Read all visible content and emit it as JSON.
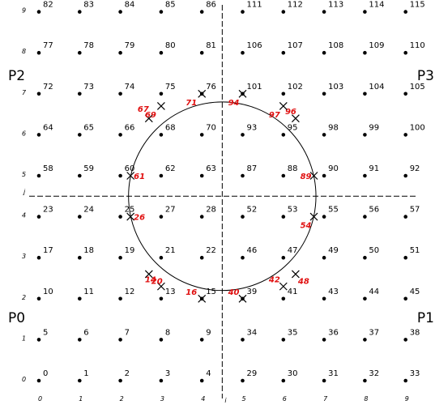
{
  "colors": {
    "dot": "#000000",
    "line": "#000000",
    "crossing": "#e01010"
  },
  "axes": {
    "x_name": "i",
    "y_name": "j",
    "x_ticks": [
      "0",
      "1",
      "2",
      "3",
      "4",
      "5",
      "6",
      "7",
      "8",
      "9"
    ],
    "y_ticks": [
      "0",
      "1",
      "2",
      "3",
      "4",
      "5",
      "6",
      "7",
      "8",
      "9"
    ]
  },
  "regions": [
    {
      "label": "P0",
      "place": "left-lower"
    },
    {
      "label": "P1",
      "place": "right-lower"
    },
    {
      "label": "P2",
      "place": "left-upper"
    },
    {
      "label": "P3",
      "place": "right-upper"
    }
  ],
  "circle": {
    "center": [
      4.5,
      4.5
    ],
    "radius": 2.3
  },
  "grid_labels": [
    [
      "0",
      "1",
      "2",
      "3",
      "4",
      "29",
      "30",
      "31",
      "32",
      "33"
    ],
    [
      "5",
      "6",
      "7",
      "8",
      "9",
      "34",
      "35",
      "36",
      "37",
      "38"
    ],
    [
      "10",
      "11",
      "12",
      "13",
      "15",
      "39",
      "41",
      "43",
      "44",
      "45"
    ],
    [
      "17",
      "18",
      "19",
      "21",
      "22",
      "46",
      "47",
      "49",
      "50",
      "51"
    ],
    [
      "23",
      "24",
      "25",
      "27",
      "28",
      "52",
      "53",
      "55",
      "56",
      "57"
    ],
    [
      "58",
      "59",
      "60",
      "62",
      "63",
      "87",
      "88",
      "90",
      "91",
      "92"
    ],
    [
      "64",
      "65",
      "66",
      "68",
      "70",
      "93",
      "95",
      "98",
      "99",
      "100"
    ],
    [
      "72",
      "73",
      "74",
      "75",
      "76",
      "101",
      "102",
      "103",
      "104",
      "105"
    ],
    [
      "77",
      "78",
      "79",
      "80",
      "81",
      "106",
      "107",
      "108",
      "109",
      "110"
    ],
    [
      "82",
      "83",
      "84",
      "85",
      "86",
      "111",
      "112",
      "113",
      "114",
      "115"
    ]
  ],
  "crossings": [
    {
      "label": "14",
      "x": 3.0,
      "y": 2.3
    },
    {
      "label": "16",
      "x": 4.0,
      "y": 2.0
    },
    {
      "label": "20",
      "x": 2.7,
      "y": 2.6
    },
    {
      "label": "26",
      "x": 2.25,
      "y": 4.0
    },
    {
      "label": "40",
      "x": 5.0,
      "y": 2.0
    },
    {
      "label": "42",
      "x": 6.0,
      "y": 2.3
    },
    {
      "label": "48",
      "x": 6.3,
      "y": 2.6
    },
    {
      "label": "54",
      "x": 6.75,
      "y": 4.0
    },
    {
      "label": "61",
      "x": 2.25,
      "y": 5.0
    },
    {
      "label": "67",
      "x": 2.7,
      "y": 6.4
    },
    {
      "label": "69",
      "x": 3.0,
      "y": 6.7
    },
    {
      "label": "71",
      "x": 4.0,
      "y": 7.0
    },
    {
      "label": "89",
      "x": 6.75,
      "y": 5.0
    },
    {
      "label": "94",
      "x": 5.0,
      "y": 7.0
    },
    {
      "label": "96",
      "x": 6.3,
      "y": 6.4
    },
    {
      "label": "97",
      "x": 6.0,
      "y": 6.7
    }
  ]
}
